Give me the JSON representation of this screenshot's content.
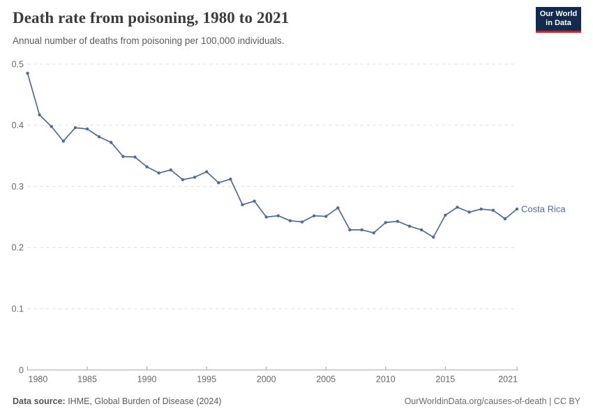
{
  "header": {
    "title": "Death rate from poisoning, 1980 to 2021",
    "subtitle": "Annual number of deaths from poisoning per 100,000 individuals."
  },
  "logo": {
    "line1": "Our World",
    "line2": "in Data"
  },
  "chart_data": {
    "type": "line",
    "title": "Death rate from poisoning, 1980 to 2021",
    "ylabel": "Annual deaths from poisoning per 100,000 individuals",
    "xlim": [
      1980,
      2021
    ],
    "ylim": [
      0,
      0.5
    ],
    "yticks": [
      0,
      0.1,
      0.2,
      0.3,
      0.4,
      0.5
    ],
    "xticks": [
      1980,
      1985,
      1990,
      1995,
      2000,
      2005,
      2010,
      2015,
      2021
    ],
    "grid": "horizontal-dashed",
    "legend_position": "end-of-line",
    "series": [
      {
        "name": "Costa Rica",
        "color": "#4C6B9E",
        "x": [
          1980,
          1981,
          1982,
          1983,
          1984,
          1985,
          1986,
          1987,
          1988,
          1989,
          1990,
          1991,
          1992,
          1993,
          1994,
          1995,
          1996,
          1997,
          1998,
          1999,
          2000,
          2001,
          2002,
          2003,
          2004,
          2005,
          2006,
          2007,
          2008,
          2009,
          2010,
          2011,
          2012,
          2013,
          2014,
          2015,
          2016,
          2017,
          2018,
          2019,
          2020,
          2021
        ],
        "values": [
          0.485,
          0.417,
          0.398,
          0.374,
          0.396,
          0.394,
          0.381,
          0.372,
          0.349,
          0.348,
          0.332,
          0.322,
          0.327,
          0.311,
          0.315,
          0.324,
          0.306,
          0.312,
          0.27,
          0.276,
          0.25,
          0.252,
          0.244,
          0.242,
          0.252,
          0.251,
          0.265,
          0.229,
          0.229,
          0.224,
          0.241,
          0.243,
          0.235,
          0.229,
          0.217,
          0.253,
          0.266,
          0.258,
          0.263,
          0.261,
          0.247,
          0.263
        ]
      }
    ],
    "end_label": "Costa Rica"
  },
  "footer": {
    "source_label": "Data source:",
    "source_text": " IHME, Global Burden of Disease (2024)",
    "credit": "OurWorldinData.org/causes-of-death | CC BY"
  },
  "colors": {
    "line": "#4C6B9E",
    "grid": "#dddddd",
    "axis": "#a3a3a3",
    "tick_label": "#666666",
    "logo_bg": "#132A4C",
    "logo_red": "#C5262C"
  }
}
